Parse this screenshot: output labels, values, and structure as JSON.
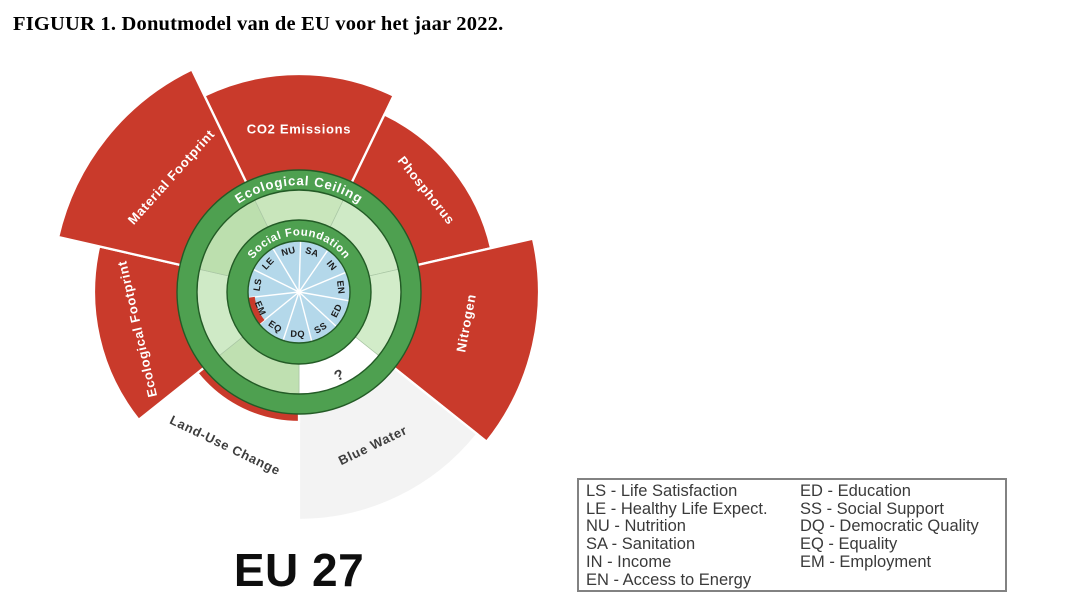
{
  "figure": {
    "title": "FIGUUR 1. Donutmodel van de EU voor het jaar 2022."
  },
  "chart_data": {
    "type": "doughnut-economics-model",
    "title": "FIGUUR 1. Donutmodel van de EU voor het jaar 2022.",
    "region_label": "EU 27",
    "ring_labels": {
      "outer": "Ecological Ceiling",
      "inner": "Social Foundation"
    },
    "no_data_symbol": "?",
    "ecological_indicators": [
      {
        "name": "CO2 Emissions",
        "status": "overshoot",
        "outer_radius_px": 218,
        "inner_ring_color": "#c9e6bc"
      },
      {
        "name": "Phosphorus",
        "status": "overshoot",
        "outer_radius_px": 197,
        "inner_ring_color": "#cfeac6"
      },
      {
        "name": "Nitrogen",
        "status": "overshoot",
        "outer_radius_px": 240,
        "inner_ring_color": "#d2ecc9"
      },
      {
        "name": "Blue Water",
        "status": "no-data",
        "outer_radius_px": 228,
        "inner_ring_color": ""
      },
      {
        "name": "Land-Use Change",
        "status": "slight-overshoot",
        "outer_radius_px": 130,
        "inner_ring_color": "#bfe0b1"
      },
      {
        "name": "Ecological Footprint",
        "status": "overshoot",
        "outer_radius_px": 205,
        "inner_ring_color": "#cfeac6"
      },
      {
        "name": "Material Footprint",
        "status": "overshoot",
        "outer_radius_px": 247,
        "inner_ring_color": "#bcdfae"
      }
    ],
    "social_indicators": [
      {
        "code": "LS",
        "name": "Life Satisfaction",
        "shortfall": false
      },
      {
        "code": "LE",
        "name": "Healthy Life Expect.",
        "shortfall": false
      },
      {
        "code": "NU",
        "name": "Nutrition",
        "shortfall": false
      },
      {
        "code": "SA",
        "name": "Sanitation",
        "shortfall": false
      },
      {
        "code": "IN",
        "name": "Income",
        "shortfall": false
      },
      {
        "code": "EN",
        "name": "Access to Energy",
        "shortfall": false
      },
      {
        "code": "ED",
        "name": "Education",
        "shortfall": false
      },
      {
        "code": "SS",
        "name": "Social Support",
        "shortfall": false
      },
      {
        "code": "DQ",
        "name": "Democratic Quality",
        "shortfall": false
      },
      {
        "code": "EQ",
        "name": "Equality",
        "shortfall": false
      },
      {
        "code": "EM",
        "name": "Employment",
        "shortfall": true
      }
    ],
    "colors": {
      "overshoot_red": "#c93a2b",
      "ring_green": "#4ea050",
      "ring_outline": "#235b26",
      "inner_ring_light_green": "#c9e6bc",
      "social_blue": "#b4d8ea",
      "no_data_gray": "#f3f3f3",
      "dark_label": "#3d3d3d",
      "white_label": "#ffffff"
    }
  },
  "legend": {
    "separator": " - "
  }
}
